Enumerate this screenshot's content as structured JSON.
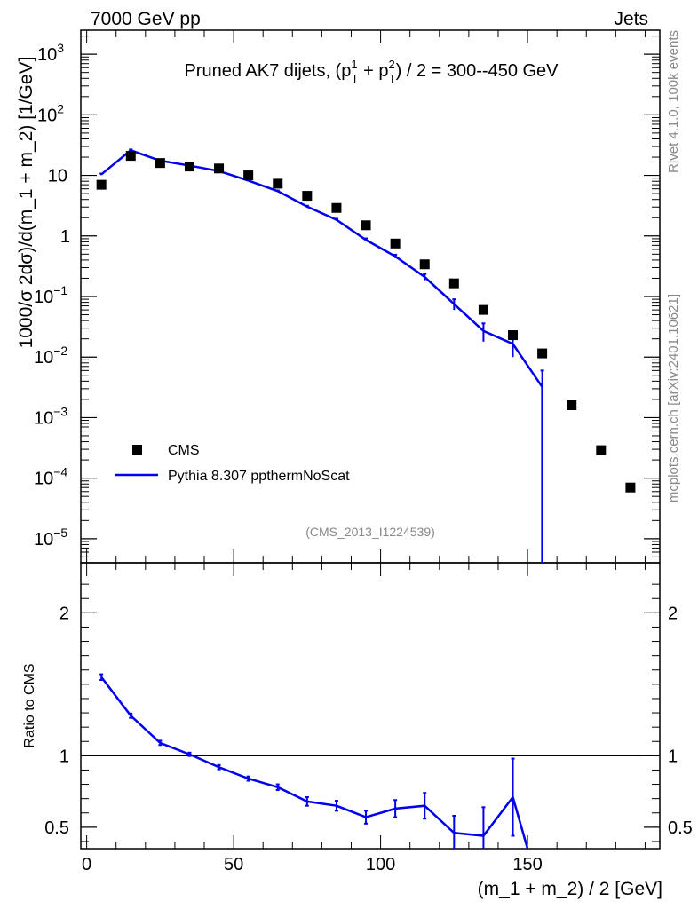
{
  "header": {
    "left": "7000 GeV pp",
    "right": "Jets"
  },
  "side_text": {
    "top": "Rivet 4.1.0,  100k events",
    "bottom": "mcplots.cern.ch [arXiv:2401.10621]"
  },
  "colors": {
    "data": "#000000",
    "mc": "#0000ee",
    "frame": "#000000",
    "side_text": "#888888"
  },
  "chart_data": [
    {
      "type": "scatter+line",
      "panel": "main",
      "title_parts": {
        "prefix": "Pruned AK7 dijets, (p",
        "sup1": "1",
        "sub1": "T",
        "mid": " + p",
        "sup2": "2",
        "sub2": "T",
        "suffix": ") / 2 = 300--450 GeV"
      },
      "analysis_id": "(CMS_2013_I1224539)",
      "ylabel": "1000/σ  2dσ)/d(m_1 + m_2) [1/GeV]",
      "yscale": "log",
      "ylim": [
        4e-06,
        2500
      ],
      "xlim": [
        -2,
        195
      ],
      "y_ticks": [
        {
          "value": 1000,
          "label": "10",
          "exp": "3"
        },
        {
          "value": 100,
          "label": "10",
          "exp": "2"
        },
        {
          "value": 10,
          "label": "10",
          "exp": ""
        },
        {
          "value": 1,
          "label": "1",
          "exp": ""
        },
        {
          "value": 0.1,
          "label": "10",
          "exp": "−1"
        },
        {
          "value": 0.01,
          "label": "10",
          "exp": "−2"
        },
        {
          "value": 0.001,
          "label": "10",
          "exp": "−3"
        },
        {
          "value": 0.0001,
          "label": "10",
          "exp": "−4"
        },
        {
          "value": 1e-05,
          "label": "10",
          "exp": "−5"
        }
      ],
      "legend": {
        "position": "bottom-left",
        "entries": [
          {
            "name": "CMS",
            "style": "marker"
          },
          {
            "name": "Pythia 8.307 ppthermNoScat",
            "style": "line"
          }
        ]
      },
      "series": [
        {
          "name": "CMS",
          "x": [
            5,
            15,
            25,
            35,
            45,
            55,
            65,
            75,
            85,
            95,
            105,
            115,
            125,
            135,
            145,
            155,
            165,
            175,
            185
          ],
          "y": [
            7.0,
            21.0,
            16.0,
            14.0,
            13.0,
            10.0,
            7.3,
            4.6,
            2.9,
            1.5,
            0.75,
            0.34,
            0.165,
            0.06,
            0.023,
            0.0115,
            0.0016,
            0.00029,
            7e-05
          ]
        },
        {
          "name": "Pythia 8.307 ppthermNoScat",
          "x": [
            5,
            15,
            25,
            35,
            45,
            55,
            65,
            75,
            85,
            95,
            105,
            115,
            125,
            135,
            145,
            155
          ],
          "y": [
            10.4,
            26.0,
            17.5,
            14.5,
            11.8,
            8.2,
            5.5,
            3.05,
            1.85,
            0.86,
            0.46,
            0.21,
            0.075,
            0.027,
            0.0165,
            0.0032
          ],
          "err_lo": [
            0.3,
            0.8,
            0.4,
            0.3,
            0.3,
            0.2,
            0.15,
            0.1,
            0.07,
            0.05,
            0.03,
            0.025,
            0.015,
            0.009,
            0.0065,
            0.0032
          ],
          "err_hi": [
            0.3,
            0.8,
            0.4,
            0.3,
            0.3,
            0.2,
            0.15,
            0.1,
            0.07,
            0.05,
            0.03,
            0.025,
            0.015,
            0.009,
            0.0065,
            0.0028
          ]
        }
      ]
    },
    {
      "type": "line",
      "panel": "ratio",
      "ylabel": "Ratio to CMS",
      "xlabel": "(m_1 + m_2) / 2 [GeV]",
      "ylim": [
        0.35,
        2.35
      ],
      "xlim": [
        -2,
        195
      ],
      "reference": 1,
      "y_ticks": [
        {
          "value": 0.5,
          "label": "0.5"
        },
        {
          "value": 1,
          "label": "1"
        },
        {
          "value": 2,
          "label": "2"
        }
      ],
      "x_ticks": [
        {
          "value": 0,
          "label": "0"
        },
        {
          "value": 50,
          "label": "50"
        },
        {
          "value": 100,
          "label": "100"
        },
        {
          "value": 150,
          "label": "150"
        }
      ],
      "series": [
        {
          "name": "Pythia 8.307 ppthermNoScat / CMS",
          "x": [
            5,
            15,
            25,
            35,
            45,
            55,
            65,
            75,
            85,
            95,
            105,
            115,
            125,
            135,
            145,
            150
          ],
          "y": [
            1.55,
            1.28,
            1.09,
            1.01,
            0.92,
            0.84,
            0.78,
            0.68,
            0.65,
            0.57,
            0.63,
            0.65,
            0.46,
            0.44,
            0.71,
            0.35
          ],
          "err": [
            0.02,
            0.015,
            0.015,
            0.012,
            0.015,
            0.015,
            0.02,
            0.03,
            0.035,
            0.045,
            0.06,
            0.09,
            0.12,
            0.2,
            0.27,
            0.0
          ]
        }
      ]
    }
  ]
}
